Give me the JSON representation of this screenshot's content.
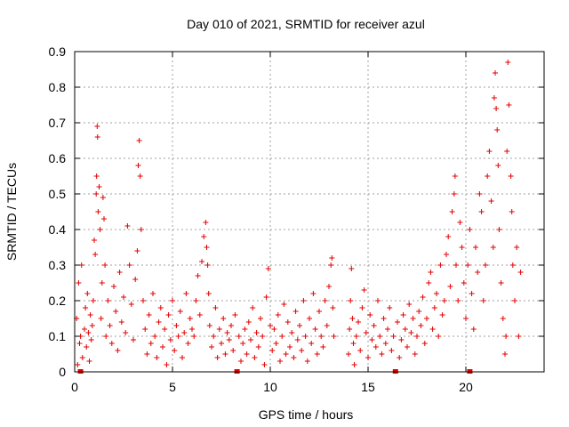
{
  "chart_data": {
    "type": "scatter",
    "title": "Day 010 of 2021, SRMTID for receiver azul",
    "xlabel": "GPS time / hours",
    "ylabel": "SRMTID / TECUs",
    "xlim": [
      0,
      24
    ],
    "ylim": [
      0,
      0.9
    ],
    "xticks": [
      0,
      5,
      10,
      15,
      20
    ],
    "yticks": [
      0,
      0.1,
      0.2,
      0.3,
      0.4,
      0.5,
      0.6,
      0.7,
      0.8,
      0.9
    ],
    "xtick_labels": [
      "0",
      "5",
      "10",
      "15",
      "20"
    ],
    "ytick_labels": [
      "0",
      "0.1",
      "0.2",
      "0.3",
      "0.4",
      "0.5",
      "0.6",
      "0.7",
      "0.8",
      "0.9"
    ],
    "grid": true,
    "marker": "+",
    "color": "#e00000",
    "baseline_markers_x": [
      0.3,
      8.3,
      16.4,
      20.2
    ],
    "series": [
      {
        "name": "SRMTID",
        "points": [
          [
            0.1,
            0.15
          ],
          [
            0.15,
            0.02
          ],
          [
            0.2,
            0.25
          ],
          [
            0.25,
            0.08
          ],
          [
            0.3,
            0.1
          ],
          [
            0.35,
            0.3
          ],
          [
            0.4,
            0.04
          ],
          [
            0.5,
            0.12
          ],
          [
            0.55,
            0.18
          ],
          [
            0.6,
            0.07
          ],
          [
            0.65,
            0.22
          ],
          [
            0.7,
            0.11
          ],
          [
            0.75,
            0.03
          ],
          [
            0.8,
            0.16
          ],
          [
            0.85,
            0.09
          ],
          [
            0.9,
            0.13
          ],
          [
            0.95,
            0.2
          ],
          [
            1.0,
            0.37
          ],
          [
            1.05,
            0.33
          ],
          [
            1.1,
            0.5
          ],
          [
            1.12,
            0.55
          ],
          [
            1.15,
            0.69
          ],
          [
            1.17,
            0.66
          ],
          [
            1.2,
            0.45
          ],
          [
            1.25,
            0.52
          ],
          [
            1.3,
            0.4
          ],
          [
            1.35,
            0.15
          ],
          [
            1.4,
            0.25
          ],
          [
            1.45,
            0.49
          ],
          [
            1.5,
            0.43
          ],
          [
            1.55,
            0.3
          ],
          [
            1.6,
            0.1
          ],
          [
            1.7,
            0.2
          ],
          [
            1.8,
            0.13
          ],
          [
            1.9,
            0.08
          ],
          [
            2.0,
            0.24
          ],
          [
            2.1,
            0.17
          ],
          [
            2.2,
            0.06
          ],
          [
            2.3,
            0.28
          ],
          [
            2.4,
            0.14
          ],
          [
            2.5,
            0.21
          ],
          [
            2.6,
            0.11
          ],
          [
            2.7,
            0.41
          ],
          [
            2.8,
            0.3
          ],
          [
            2.9,
            0.19
          ],
          [
            3.0,
            0.09
          ],
          [
            3.1,
            0.26
          ],
          [
            3.2,
            0.34
          ],
          [
            3.25,
            0.58
          ],
          [
            3.3,
            0.65
          ],
          [
            3.35,
            0.55
          ],
          [
            3.4,
            0.4
          ],
          [
            3.5,
            0.2
          ],
          [
            3.6,
            0.12
          ],
          [
            3.7,
            0.05
          ],
          [
            3.8,
            0.16
          ],
          [
            3.9,
            0.08
          ],
          [
            4.0,
            0.22
          ],
          [
            4.1,
            0.1
          ],
          [
            4.2,
            0.04
          ],
          [
            4.3,
            0.14
          ],
          [
            4.4,
            0.18
          ],
          [
            4.5,
            0.07
          ],
          [
            4.6,
            0.12
          ],
          [
            4.7,
            0.02
          ],
          [
            4.8,
            0.16
          ],
          [
            4.9,
            0.09
          ],
          [
            5.0,
            0.2
          ],
          [
            5.1,
            0.06
          ],
          [
            5.2,
            0.13
          ],
          [
            5.3,
            0.1
          ],
          [
            5.4,
            0.17
          ],
          [
            5.5,
            0.04
          ],
          [
            5.6,
            0.11
          ],
          [
            5.7,
            0.22
          ],
          [
            5.8,
            0.08
          ],
          [
            5.9,
            0.15
          ],
          [
            6.0,
            0.12
          ],
          [
            6.1,
            0.1
          ],
          [
            6.2,
            0.2
          ],
          [
            6.3,
            0.27
          ],
          [
            6.4,
            0.16
          ],
          [
            6.5,
            0.31
          ],
          [
            6.6,
            0.38
          ],
          [
            6.7,
            0.42
          ],
          [
            6.75,
            0.35
          ],
          [
            6.8,
            0.3
          ],
          [
            6.85,
            0.22
          ],
          [
            6.9,
            0.13
          ],
          [
            7.0,
            0.07
          ],
          [
            7.1,
            0.1
          ],
          [
            7.2,
            0.18
          ],
          [
            7.3,
            0.04
          ],
          [
            7.4,
            0.12
          ],
          [
            7.5,
            0.08
          ],
          [
            7.6,
            0.15
          ],
          [
            7.7,
            0.05
          ],
          [
            7.8,
            0.11
          ],
          [
            7.9,
            0.09
          ],
          [
            8.0,
            0.13
          ],
          [
            8.1,
            0.06
          ],
          [
            8.2,
            0.16
          ],
          [
            8.4,
            0.1
          ],
          [
            8.5,
            0.03
          ],
          [
            8.6,
            0.08
          ],
          [
            8.7,
            0.12
          ],
          [
            8.8,
            0.05
          ],
          [
            8.9,
            0.14
          ],
          [
            9.0,
            0.09
          ],
          [
            9.1,
            0.18
          ],
          [
            9.2,
            0.04
          ],
          [
            9.3,
            0.11
          ],
          [
            9.4,
            0.07
          ],
          [
            9.5,
            0.15
          ],
          [
            9.6,
            0.1
          ],
          [
            9.7,
            0.02
          ],
          [
            9.8,
            0.21
          ],
          [
            9.9,
            0.29
          ],
          [
            10.0,
            0.13
          ],
          [
            10.1,
            0.06
          ],
          [
            10.2,
            0.12
          ],
          [
            10.3,
            0.08
          ],
          [
            10.4,
            0.16
          ],
          [
            10.5,
            0.03
          ],
          [
            10.6,
            0.1
          ],
          [
            10.7,
            0.19
          ],
          [
            10.8,
            0.05
          ],
          [
            10.9,
            0.14
          ],
          [
            11.0,
            0.07
          ],
          [
            11.1,
            0.11
          ],
          [
            11.2,
            0.04
          ],
          [
            11.3,
            0.17
          ],
          [
            11.4,
            0.09
          ],
          [
            11.5,
            0.13
          ],
          [
            11.6,
            0.06
          ],
          [
            11.7,
            0.2
          ],
          [
            11.8,
            0.1
          ],
          [
            11.9,
            0.03
          ],
          [
            12.0,
            0.15
          ],
          [
            12.1,
            0.08
          ],
          [
            12.2,
            0.22
          ],
          [
            12.3,
            0.12
          ],
          [
            12.4,
            0.05
          ],
          [
            12.5,
            0.17
          ],
          [
            12.6,
            0.1
          ],
          [
            12.7,
            0.07
          ],
          [
            12.8,
            0.2
          ],
          [
            12.9,
            0.13
          ],
          [
            13.0,
            0.24
          ],
          [
            13.1,
            0.3
          ],
          [
            13.15,
            0.32
          ],
          [
            13.2,
            0.18
          ],
          [
            13.25,
            0.1
          ],
          [
            14.0,
            0.05
          ],
          [
            14.05,
            0.12
          ],
          [
            14.1,
            0.2
          ],
          [
            14.15,
            0.29
          ],
          [
            14.2,
            0.15
          ],
          [
            14.25,
            0.08
          ],
          [
            14.3,
            0.02
          ],
          [
            14.4,
            0.1
          ],
          [
            14.5,
            0.14
          ],
          [
            14.6,
            0.06
          ],
          [
            14.7,
            0.18
          ],
          [
            14.8,
            0.23
          ],
          [
            14.9,
            0.11
          ],
          [
            15.0,
            0.04
          ],
          [
            15.1,
            0.16
          ],
          [
            15.2,
            0.09
          ],
          [
            15.3,
            0.13
          ],
          [
            15.4,
            0.07
          ],
          [
            15.5,
            0.2
          ],
          [
            15.6,
            0.1
          ],
          [
            15.7,
            0.05
          ],
          [
            15.8,
            0.15
          ],
          [
            15.9,
            0.08
          ],
          [
            16.0,
            0.12
          ],
          [
            16.1,
            0.18
          ],
          [
            16.2,
            0.06
          ],
          [
            16.3,
            0.1
          ],
          [
            16.5,
            0.14
          ],
          [
            16.6,
            0.04
          ],
          [
            16.7,
            0.09
          ],
          [
            16.8,
            0.16
          ],
          [
            16.9,
            0.12
          ],
          [
            17.0,
            0.07
          ],
          [
            17.1,
            0.19
          ],
          [
            17.2,
            0.11
          ],
          [
            17.3,
            0.15
          ],
          [
            17.4,
            0.05
          ],
          [
            17.5,
            0.1
          ],
          [
            17.6,
            0.17
          ],
          [
            17.7,
            0.13
          ],
          [
            17.8,
            0.21
          ],
          [
            17.9,
            0.08
          ],
          [
            18.0,
            0.15
          ],
          [
            18.1,
            0.25
          ],
          [
            18.2,
            0.28
          ],
          [
            18.3,
            0.12
          ],
          [
            18.4,
            0.18
          ],
          [
            18.5,
            0.22
          ],
          [
            18.6,
            0.1
          ],
          [
            18.7,
            0.3
          ],
          [
            18.8,
            0.16
          ],
          [
            18.9,
            0.2
          ],
          [
            19.0,
            0.33
          ],
          [
            19.1,
            0.38
          ],
          [
            19.2,
            0.24
          ],
          [
            19.3,
            0.45
          ],
          [
            19.4,
            0.5
          ],
          [
            19.45,
            0.55
          ],
          [
            19.5,
            0.3
          ],
          [
            19.6,
            0.2
          ],
          [
            19.7,
            0.42
          ],
          [
            19.8,
            0.35
          ],
          [
            19.9,
            0.25
          ],
          [
            20.0,
            0.15
          ],
          [
            20.1,
            0.3
          ],
          [
            20.2,
            0.4
          ],
          [
            20.3,
            0.22
          ],
          [
            20.4,
            0.12
          ],
          [
            20.5,
            0.35
          ],
          [
            20.6,
            0.28
          ],
          [
            20.7,
            0.5
          ],
          [
            20.8,
            0.45
          ],
          [
            20.9,
            0.2
          ],
          [
            21.0,
            0.3
          ],
          [
            21.1,
            0.55
          ],
          [
            21.2,
            0.62
          ],
          [
            21.3,
            0.48
          ],
          [
            21.4,
            0.35
          ],
          [
            21.45,
            0.77
          ],
          [
            21.5,
            0.84
          ],
          [
            21.55,
            0.74
          ],
          [
            21.6,
            0.68
          ],
          [
            21.65,
            0.58
          ],
          [
            21.7,
            0.4
          ],
          [
            21.8,
            0.25
          ],
          [
            21.9,
            0.15
          ],
          [
            22.0,
            0.05
          ],
          [
            22.05,
            0.1
          ],
          [
            22.1,
            0.62
          ],
          [
            22.15,
            0.87
          ],
          [
            22.2,
            0.75
          ],
          [
            22.3,
            0.55
          ],
          [
            22.35,
            0.45
          ],
          [
            22.4,
            0.3
          ],
          [
            22.5,
            0.2
          ],
          [
            22.6,
            0.35
          ],
          [
            22.7,
            0.1
          ],
          [
            22.8,
            0.28
          ]
        ]
      }
    ]
  }
}
